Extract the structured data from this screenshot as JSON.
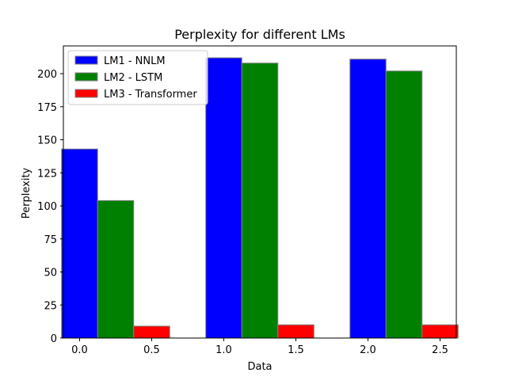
{
  "chart_data": {
    "type": "bar",
    "title": "Perplexity for different LMs",
    "xlabel": "Data",
    "ylabel": "Perplexity",
    "xlim": [
      -0.1125,
      2.6125
    ],
    "ylim": [
      0,
      221
    ],
    "xticks": [
      "0.0",
      "0.5",
      "1.0",
      "1.5",
      "2.0",
      "2.5"
    ],
    "yticks": [
      "0",
      "25",
      "50",
      "75",
      "100",
      "125",
      "150",
      "175",
      "200"
    ],
    "bar_width": 0.25,
    "grid": false,
    "legend_position": "top-left",
    "series": [
      {
        "name": "LM1 - NNLM",
        "color": "#0000ff",
        "x": [
          0,
          1,
          2
        ],
        "values": [
          143,
          212,
          211
        ]
      },
      {
        "name": "LM2 - LSTM",
        "color": "#008000",
        "x": [
          0.25,
          1.25,
          2.25
        ],
        "values": [
          104,
          208,
          202
        ]
      },
      {
        "name": "LM3 - Transformer",
        "color": "#ff0000",
        "x": [
          0.5,
          1.5,
          2.5
        ],
        "values": [
          9,
          10,
          10
        ]
      }
    ]
  }
}
